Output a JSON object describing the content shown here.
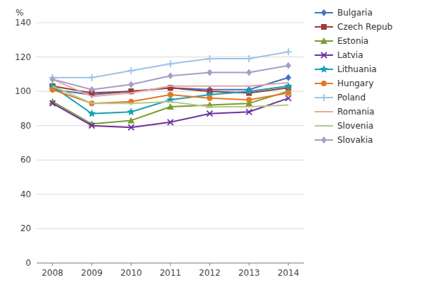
{
  "chart_data": {
    "type": "line",
    "x": [
      2008,
      2009,
      2010,
      2011,
      2012,
      2013,
      2014
    ],
    "xlim": [
      2007.6,
      2014.4
    ],
    "xticks": [
      2008,
      2009,
      2010,
      2011,
      2012,
      2013,
      2014
    ],
    "ylabel": "%",
    "ylim": [
      0,
      140
    ],
    "yticks": [
      0,
      20,
      40,
      60,
      80,
      100,
      120,
      140
    ],
    "grid": true,
    "legend": "right",
    "series": [
      {
        "name": "Bulgaria",
        "color": "#4472c4",
        "marker": "diamond",
        "values": [
          101,
          98,
          100,
          102,
          101,
          101,
          108
        ]
      },
      {
        "name": "Czech Repub",
        "color": "#9b3b3b",
        "marker": "square",
        "values": [
          103,
          99,
          100,
          102,
          100,
          99,
          102
        ]
      },
      {
        "name": "Estonia",
        "color": "#7a9b2e",
        "marker": "triangle",
        "values": [
          94,
          81,
          83,
          91,
          92,
          93,
          100
        ]
      },
      {
        "name": "Latvia",
        "color": "#7030a0",
        "marker": "x",
        "values": [
          93,
          80,
          79,
          82,
          87,
          88,
          96
        ]
      },
      {
        "name": "Lithuania",
        "color": "#17a0b4",
        "marker": "star",
        "values": [
          103,
          87,
          88,
          95,
          98,
          100,
          103
        ]
      },
      {
        "name": "Hungary",
        "color": "#e07b25",
        "marker": "circle",
        "values": [
          101,
          93,
          94,
          98,
          96,
          95,
          99
        ]
      },
      {
        "name": "Poland",
        "color": "#9dc3e6",
        "marker": "plus",
        "values": [
          108,
          108,
          112,
          116,
          119,
          119,
          123
        ]
      },
      {
        "name": "Romania",
        "color": "#e8a89c",
        "marker": "none",
        "values": [
          107,
          97,
          99,
          103,
          103,
          103,
          105
        ]
      },
      {
        "name": "Slovenia",
        "color": "#b8c88a",
        "marker": "none",
        "values": [
          103,
          93,
          93,
          94,
          91,
          91,
          92
        ]
      },
      {
        "name": "Slovakia",
        "color": "#a89cc8",
        "marker": "diamond",
        "values": [
          107,
          101,
          104,
          109,
          111,
          111,
          115
        ]
      }
    ]
  }
}
